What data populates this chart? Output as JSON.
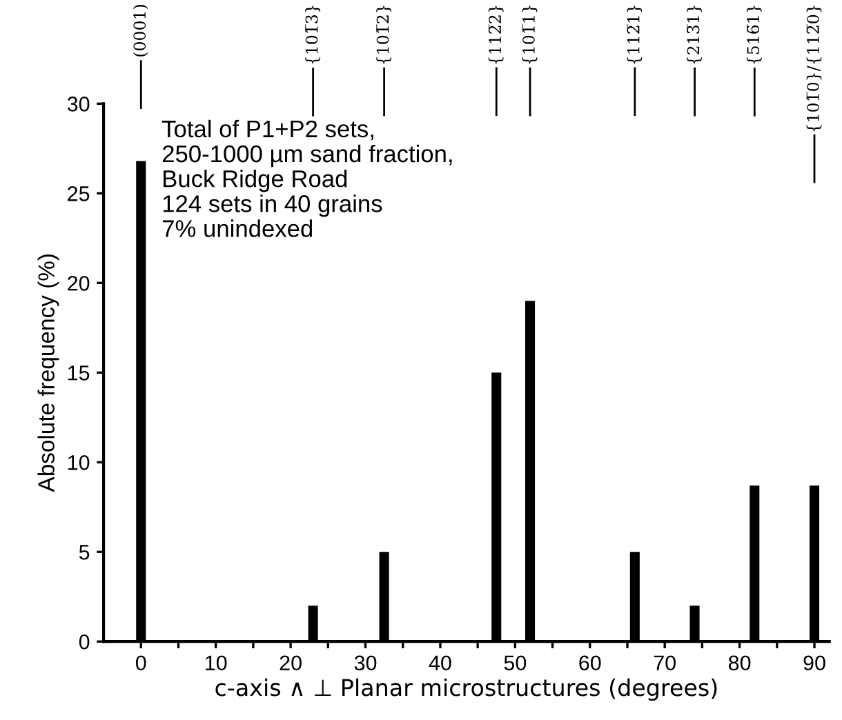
{
  "chart_data": {
    "type": "bar",
    "xlabel": "c-axis ∧ ⊥ Planar microstructures (degrees)",
    "ylabel": "Absolute frequency (%)",
    "x": [
      0,
      23,
      32.5,
      47.5,
      52,
      66,
      74,
      82,
      90
    ],
    "values": [
      26.8,
      2,
      5,
      15,
      19,
      5,
      2,
      8.7,
      8.7
    ],
    "color": "#000000",
    "xlim": [
      -5,
      92
    ],
    "ylim": [
      0,
      30
    ],
    "xticks": [
      0,
      {
        "value": 5,
        "label": null
      },
      10,
      {
        "value": 15,
        "label": null
      },
      20,
      {
        "value": 25,
        "label": null
      },
      30,
      {
        "value": 35,
        "label": null
      },
      40,
      {
        "value": 45,
        "label": null
      },
      50,
      {
        "value": 55,
        "label": null
      },
      60,
      {
        "value": 65,
        "label": null
      },
      70,
      {
        "value": 75,
        "label": null
      },
      80,
      {
        "value": 85,
        "label": null
      },
      90
    ],
    "yticks": [
      0,
      5,
      10,
      15,
      20,
      25,
      30
    ],
    "grid": false,
    "annotations": [
      "Total of P1+P2 sets,\n250-1000 µm sand fraction,\nBuck Ridge Road\n124 sets in 40 grains\n7% unindexed",
      {
        "text": "(0001)",
        "x": 0
      },
      {
        "text": "{101̅3}",
        "x": 23
      },
      {
        "text": "{101̅2}",
        "x": 32.5
      },
      {
        "text": "{112̅2}",
        "x": 47.5
      },
      {
        "text": "{101̅1}",
        "x": 52
      },
      {
        "text": "{112̅1}",
        "x": 66
      },
      {
        "text": "{213̅1}",
        "x": 74
      },
      {
        "text": "{516̅1}",
        "x": 82
      },
      {
        "text": "{101̅0}/{112̅0}",
        "x": 90
      }
    ]
  }
}
